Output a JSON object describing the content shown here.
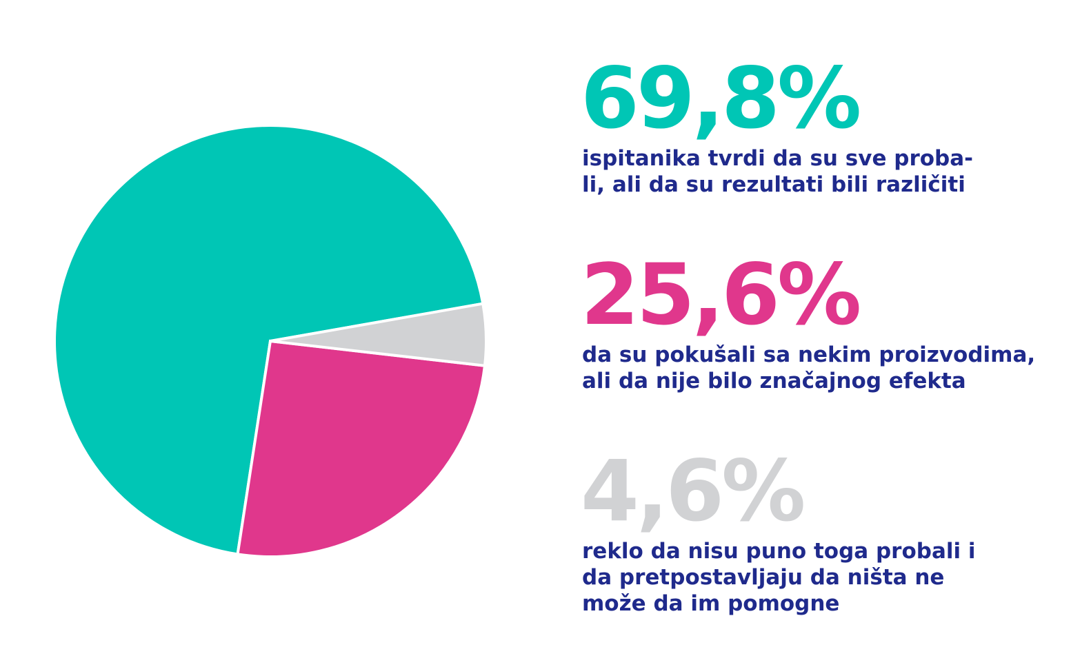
{
  "chart_data": {
    "type": "pie",
    "values": [
      69.8,
      25.6,
      4.6
    ],
    "value_labels": [
      "69,8%",
      "25,6%",
      "4,6%"
    ],
    "colors": [
      "#00c6b5",
      "#e0378c",
      "#d1d2d4"
    ],
    "descriptions": [
      [
        "ispitanika tvrdi da su sve proba-",
        "li, ali da su rezultati bili različiti"
      ],
      [
        "da su pokušali sa nekim proizvodima,",
        "ali da nije bilo značajnog efekta"
      ],
      [
        "reklo da nisu puno toga probali i",
        "da pretpostavljaju da ništa ne",
        "može da im pomogne"
      ]
    ]
  }
}
